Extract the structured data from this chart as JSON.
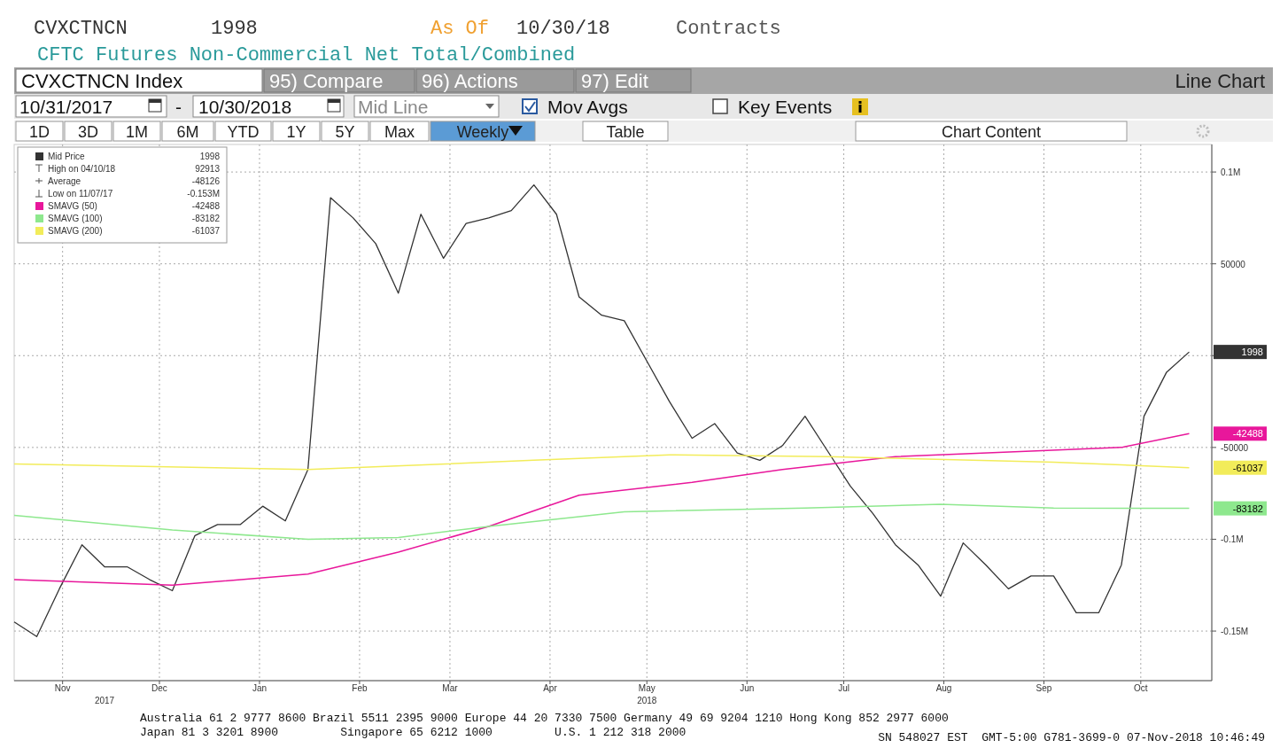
{
  "chart_data": {
    "type": "line",
    "title": "CVXCTNCN",
    "subtitle": "CFTC Futures Non-Commercial Net Total/Combined",
    "x": [
      "2017-10-31",
      "2017-11-07",
      "2017-11-14",
      "2017-11-21",
      "2017-11-28",
      "2017-12-05",
      "2017-12-12",
      "2017-12-19",
      "2017-12-26",
      "2018-01-02",
      "2018-01-09",
      "2018-01-16",
      "2018-01-23",
      "2018-01-30",
      "2018-02-06",
      "2018-02-13",
      "2018-02-20",
      "2018-02-27",
      "2018-03-06",
      "2018-03-13",
      "2018-03-20",
      "2018-03-27",
      "2018-04-03",
      "2018-04-10",
      "2018-04-17",
      "2018-04-24",
      "2018-05-01",
      "2018-05-08",
      "2018-05-15",
      "2018-05-22",
      "2018-05-29",
      "2018-06-05",
      "2018-06-12",
      "2018-06-19",
      "2018-06-26",
      "2018-07-03",
      "2018-07-10",
      "2018-07-17",
      "2018-07-24",
      "2018-07-31",
      "2018-08-07",
      "2018-08-14",
      "2018-08-21",
      "2018-08-28",
      "2018-09-04",
      "2018-09-11",
      "2018-09-18",
      "2018-09-25",
      "2018-10-02",
      "2018-10-09",
      "2018-10-16",
      "2018-10-23",
      "2018-10-30"
    ],
    "series": [
      {
        "name": "Mid Price",
        "color": "#333333",
        "values": [
          -145000,
          -153000,
          -127000,
          -103000,
          -115000,
          -115000,
          -122000,
          -128000,
          -98000,
          -92000,
          -92000,
          -82000,
          -90000,
          -62000,
          86000,
          75000,
          61000,
          34000,
          77000,
          53000,
          72000,
          75000,
          79000,
          93000,
          77000,
          32000,
          22000,
          19000,
          -3000,
          -25000,
          -45000,
          -37000,
          -53000,
          -57000,
          -49000,
          -33000,
          -52000,
          -71000,
          -86000,
          -103000,
          -114000,
          -131000,
          -102000,
          -114000,
          -127000,
          -120000,
          -120000,
          -140000,
          -140000,
          -114000,
          -33000,
          -9000,
          1998
        ]
      },
      {
        "name": "SMAVG (50)",
        "color": "#e8179b",
        "x": [
          "2017-10-31",
          "2017-12-19",
          "2018-01-30",
          "2018-02-27",
          "2018-03-27",
          "2018-04-24",
          "2018-05-29",
          "2018-06-26",
          "2018-07-31",
          "2018-09-11",
          "2018-10-09",
          "2018-10-30"
        ],
        "values": [
          -122000,
          -125000,
          -119000,
          -107000,
          -93000,
          -76000,
          -69000,
          -62000,
          -55000,
          -52000,
          -50000,
          -42488
        ]
      },
      {
        "name": "SMAVG (100)",
        "color": "#8ee88e",
        "x": [
          "2017-10-31",
          "2017-12-19",
          "2018-01-30",
          "2018-02-27",
          "2018-03-27",
          "2018-05-08",
          "2018-07-03",
          "2018-08-14",
          "2018-09-18",
          "2018-10-30"
        ],
        "values": [
          -87000,
          -95000,
          -100000,
          -99000,
          -93000,
          -85000,
          -83000,
          -81000,
          -83000,
          -83182
        ]
      },
      {
        "name": "SMAVG (200)",
        "color": "#f2ec5a",
        "x": [
          "2017-10-31",
          "2018-01-30",
          "2018-04-10",
          "2018-05-22",
          "2018-07-10",
          "2018-09-18",
          "2018-10-30"
        ],
        "values": [
          -59000,
          -62000,
          -57000,
          -54000,
          -55000,
          -58000,
          -61037
        ]
      }
    ],
    "xlim": [
      "2017-10-31",
      "2018-11-06"
    ],
    "xticks": [
      {
        "value": "2017-11-15",
        "label": "Nov"
      },
      {
        "value": "2017-12-15",
        "label": "Dec"
      },
      {
        "value": "2018-01-15",
        "label": "Jan"
      },
      {
        "value": "2018-02-15",
        "label": "Feb"
      },
      {
        "value": "2018-03-15",
        "label": "Mar"
      },
      {
        "value": "2018-04-15",
        "label": "Apr"
      },
      {
        "value": "2018-05-15",
        "label": "May"
      },
      {
        "value": "2018-06-15",
        "label": "Jun"
      },
      {
        "value": "2018-07-15",
        "label": "Jul"
      },
      {
        "value": "2018-08-15",
        "label": "Aug"
      },
      {
        "value": "2018-09-15",
        "label": "Sep"
      },
      {
        "value": "2018-10-15",
        "label": "Oct"
      }
    ],
    "ylim": [
      -177000,
      115000
    ],
    "yticks": [
      {
        "value": 100000,
        "label": "0.1M"
      },
      50000,
      {
        "value": 0,
        "label": null
      },
      -50000,
      {
        "value": -100000,
        "label": "-0.1M"
      },
      {
        "value": -150000,
        "label": "-0.15M"
      }
    ],
    "grid": true,
    "legend": "top left",
    "marker": "none",
    "line_style": "solid",
    "annotations": [
      "1998",
      "As Of",
      "10/30/18",
      "Contracts",
      "CVXCTNCN Index",
      "95) Compare",
      "96) Actions",
      "97) Edit",
      "Line Chart",
      "10/31/2017",
      "-",
      "10/30/2018",
      "Mid Line",
      "Mov Avgs",
      "Key Events",
      "1D",
      "3D",
      "1M",
      "6M",
      "YTD",
      "1Y",
      "5Y",
      "Max",
      "Weekly",
      "Table",
      "Chart Content",
      "High on 04/10/18",
      "92913",
      "Average",
      "-48126",
      "Low on 11/07/17",
      "-0.153M",
      "2017",
      "2018",
      "Australia 61 2 9777 8600 Brazil 5511 2395 9000 Europe 44 20 7330 7500 Germany 49 69 9204 1210 Hong Kong 852 2977 6000",
      "Japan 81 3 3201 8900         Singapore 65 6212 1000         U.S. 1 212 318 2000",
      "SN 548027 EST  GMT-5:00 G781-3699-0 07-Nov-2018 10:46:49",
      "1998",
      "-42488",
      "-83182",
      "-61037"
    ]
  }
}
